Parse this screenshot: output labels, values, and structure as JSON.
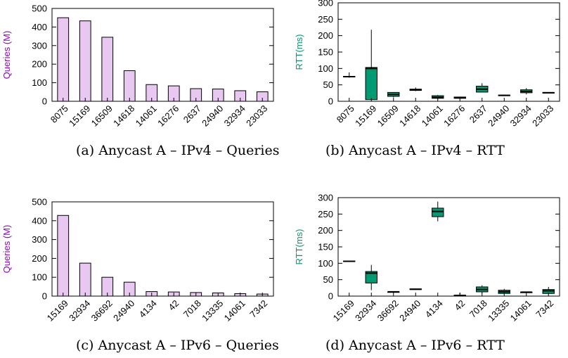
{
  "colors": {
    "queries_fill": "#e8c8f0",
    "queries_axis_label": "#9400d3",
    "rtt_fill": "#009b72",
    "rtt_axis_label": "#009b72"
  },
  "chart_data": [
    {
      "id": "a",
      "type": "bar",
      "caption": "(a) Anycast A – IPv4 – Queries",
      "ylabel": "Queries (M)",
      "xlabel": "",
      "ylim": [
        0,
        500
      ],
      "yticks": [
        0,
        100,
        200,
        300,
        400,
        500
      ],
      "categories": [
        "8075",
        "15169",
        "16509",
        "14618",
        "14061",
        "16276",
        "2637",
        "24940",
        "32934",
        "23033"
      ],
      "values": [
        450,
        433,
        345,
        165,
        90,
        83,
        68,
        66,
        57,
        51
      ],
      "grid": false,
      "legend": "none"
    },
    {
      "id": "b",
      "type": "box",
      "caption": "(b) Anycast A – IPv4 – RTT",
      "ylabel": "RTT(ms)",
      "xlabel": "",
      "ylim": [
        0,
        300
      ],
      "yticks": [
        0,
        50,
        100,
        150,
        200,
        250,
        300
      ],
      "categories": [
        "8075",
        "15169",
        "16509",
        "14618",
        "14061",
        "16276",
        "2637",
        "24940",
        "32934",
        "23033"
      ],
      "boxes": [
        {
          "min": 72,
          "q1": 74,
          "median": 75,
          "q3": 76,
          "max": 88
        },
        {
          "min": 3,
          "q1": 5,
          "median": 100,
          "q3": 103,
          "max": 218
        },
        {
          "min": 12,
          "q1": 15,
          "median": 21,
          "q3": 27,
          "max": 28
        },
        {
          "min": 31,
          "q1": 33,
          "median": 35,
          "q3": 37,
          "max": 42
        },
        {
          "min": 6,
          "q1": 9,
          "median": 12,
          "q3": 17,
          "max": 19
        },
        {
          "min": 7,
          "q1": 9,
          "median": 11,
          "q3": 13,
          "max": 14
        },
        {
          "min": 27,
          "q1": 28,
          "median": 37,
          "q3": 46,
          "max": 55
        },
        {
          "min": 16,
          "q1": 17,
          "median": 18,
          "q3": 19,
          "max": 20
        },
        {
          "min": 21,
          "q1": 26,
          "median": 30,
          "q3": 35,
          "max": 40
        },
        {
          "min": 24,
          "q1": 25,
          "median": 26,
          "q3": 27,
          "max": 28
        }
      ],
      "grid": false,
      "legend": "none"
    },
    {
      "id": "c",
      "type": "bar",
      "caption": "(c) Anycast A – IPv6 – Queries",
      "ylabel": "Queries (M)",
      "xlabel": "",
      "ylim": [
        0,
        500
      ],
      "yticks": [
        0,
        100,
        200,
        300,
        400,
        500
      ],
      "categories": [
        "15169",
        "32934",
        "36692",
        "24940",
        "4134",
        "42",
        "7018",
        "13335",
        "14061",
        "7342"
      ],
      "values": [
        428,
        175,
        100,
        74,
        24,
        22,
        19,
        17,
        13,
        11
      ],
      "grid": false,
      "legend": "none"
    },
    {
      "id": "d",
      "type": "box",
      "caption": "(d) Anycast A – IPv6 – RTT",
      "ylabel": "RTT(ms)",
      "xlabel": "",
      "ylim": [
        0,
        300
      ],
      "yticks": [
        0,
        50,
        100,
        150,
        200,
        250,
        300
      ],
      "categories": [
        "15169",
        "32934",
        "36692",
        "24940",
        "4134",
        "42",
        "7018",
        "13335",
        "14061",
        "7342"
      ],
      "boxes": [
        {
          "min": 104,
          "q1": 105,
          "median": 106,
          "q3": 107,
          "max": 108
        },
        {
          "min": 18,
          "q1": 40,
          "median": 70,
          "q3": 75,
          "max": 95
        },
        {
          "min": 12,
          "q1": 12,
          "median": 13,
          "q3": 13,
          "max": 14
        },
        {
          "min": 19,
          "q1": 20,
          "median": 21,
          "q3": 22,
          "max": 23
        },
        {
          "min": 228,
          "q1": 242,
          "median": 258,
          "q3": 268,
          "max": 288
        },
        {
          "min": 0,
          "q1": 1,
          "median": 2,
          "q3": 3,
          "max": 10
        },
        {
          "min": 8,
          "q1": 13,
          "median": 20,
          "q3": 28,
          "max": 33
        },
        {
          "min": 5,
          "q1": 8,
          "median": 13,
          "q3": 18,
          "max": 22
        },
        {
          "min": 10,
          "q1": 11,
          "median": 12,
          "q3": 12,
          "max": 13
        },
        {
          "min": 5,
          "q1": 8,
          "median": 16,
          "q3": 20,
          "max": 28
        }
      ],
      "grid": false,
      "legend": "none"
    }
  ]
}
